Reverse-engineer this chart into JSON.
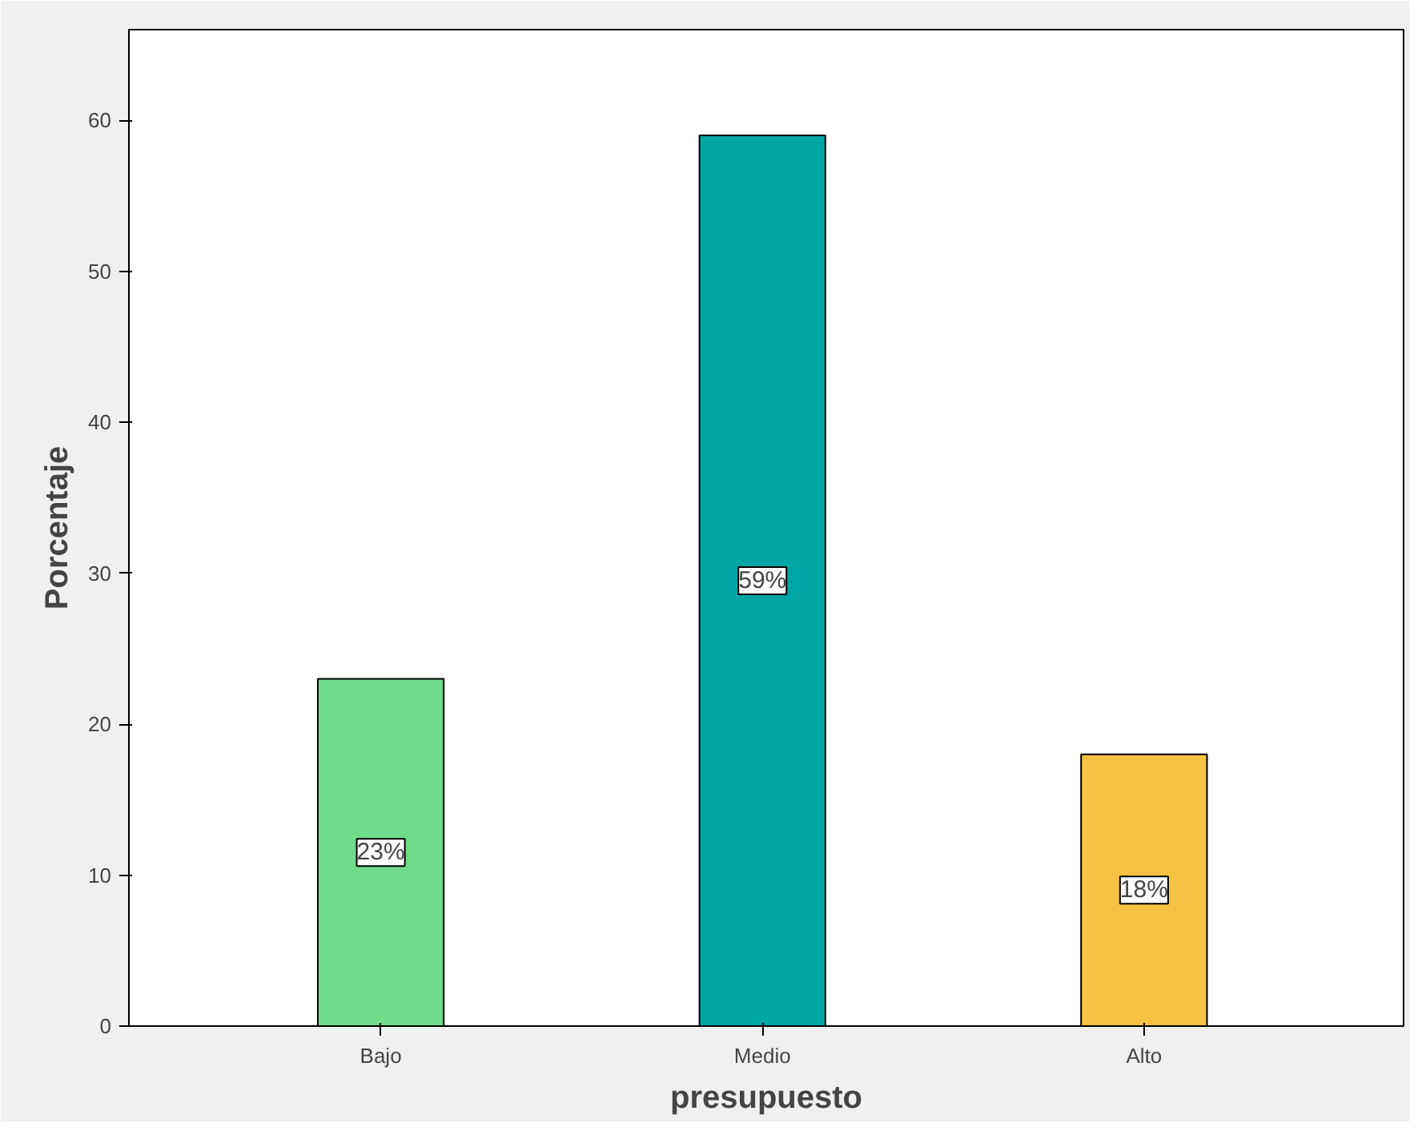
{
  "chart_data": {
    "type": "bar",
    "xlabel": "presupuesto",
    "ylabel": "Porcentaje",
    "categories": [
      "Bajo",
      "Medio",
      "Alto"
    ],
    "values": [
      23,
      59,
      18
    ],
    "colors": [
      "#6fdc8c",
      "#00a6a6",
      "#f5c242"
    ],
    "value_labels": [
      "23%",
      "59%",
      "18%"
    ],
    "ylim": [
      0,
      66
    ],
    "yticks": [
      0,
      10,
      20,
      30,
      40,
      50,
      60
    ],
    "grid": false
  }
}
